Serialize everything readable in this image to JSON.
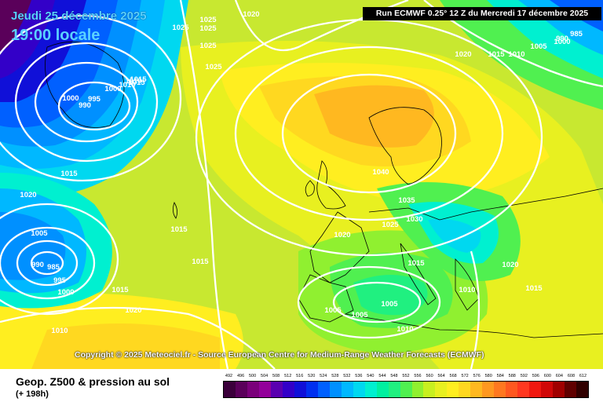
{
  "header": {
    "date": "Jeudi 25 décembre 2025",
    "time": "19:00 locale",
    "run_info": "Run ECMWF 0.25° 12 Z du Mercredi 17 décembre 2025"
  },
  "copyright": "Copyright © 2025 Meteociel.fr - Source European Centre for Medium-Range Weather Forecasts (ECMWF)",
  "footer": {
    "title": "Geop. Z500 & pression au sol",
    "subtitle": "(+ 198h)"
  },
  "colors": {
    "map_background": "#c8e830",
    "isobar": "#ffffff",
    "coastline": "#000000"
  },
  "legend": {
    "values": [
      "492",
      "496",
      "500",
      "504",
      "508",
      "512",
      "516",
      "520",
      "524",
      "528",
      "532",
      "536",
      "540",
      "544",
      "548",
      "552",
      "556",
      "560",
      "564",
      "568",
      "572",
      "576",
      "580",
      "584",
      "588",
      "592",
      "596",
      "600",
      "604",
      "608",
      "612"
    ],
    "colors": [
      "#3b003b",
      "#5a005a",
      "#7a007a",
      "#93009a",
      "#5a00b0",
      "#3300c8",
      "#1010d8",
      "#0030f0",
      "#0060ff",
      "#0090ff",
      "#00b8ff",
      "#00d8f0",
      "#00f0d0",
      "#00f0a0",
      "#20f080",
      "#50f050",
      "#90f030",
      "#c8f020",
      "#e8f020",
      "#ffee20",
      "#ffd820",
      "#ffb820",
      "#ff9820",
      "#ff7820",
      "#ff5820",
      "#ff3820",
      "#f01810",
      "#d00808",
      "#a00000",
      "#600000",
      "#300000"
    ]
  },
  "isobar_labels": [
    {
      "text": "1020"
    },
    {
      "text": "1025"
    },
    {
      "text": "1025"
    },
    {
      "text": "1025"
    },
    {
      "text": "1025"
    },
    {
      "text": "1025"
    },
    {
      "text": "1020"
    },
    {
      "text": "1015"
    },
    {
      "text": "1010"
    },
    {
      "text": "1005"
    },
    {
      "text": "1000"
    },
    {
      "text": "990"
    },
    {
      "text": "985"
    },
    {
      "text": "1010"
    },
    {
      "text": "1015"
    },
    {
      "text": "1000"
    },
    {
      "text": "995"
    },
    {
      "text": "990"
    },
    {
      "text": "1000"
    },
    {
      "text": "1010"
    },
    {
      "text": "1015"
    },
    {
      "text": "1015"
    },
    {
      "text": "1020"
    },
    {
      "text": "1005"
    },
    {
      "text": "990"
    },
    {
      "text": "985"
    },
    {
      "text": "995"
    },
    {
      "text": "1000"
    },
    {
      "text": "1015"
    },
    {
      "text": "1015"
    },
    {
      "text": "1020"
    },
    {
      "text": "1015"
    },
    {
      "text": "1010"
    },
    {
      "text": "1040"
    },
    {
      "text": "1035"
    },
    {
      "text": "1030"
    },
    {
      "text": "1025"
    },
    {
      "text": "1020"
    },
    {
      "text": "1015"
    },
    {
      "text": "1005"
    },
    {
      "text": "1005"
    },
    {
      "text": "1005"
    },
    {
      "text": "1010"
    },
    {
      "text": "1010"
    },
    {
      "text": "1015"
    },
    {
      "text": "1020"
    }
  ]
}
